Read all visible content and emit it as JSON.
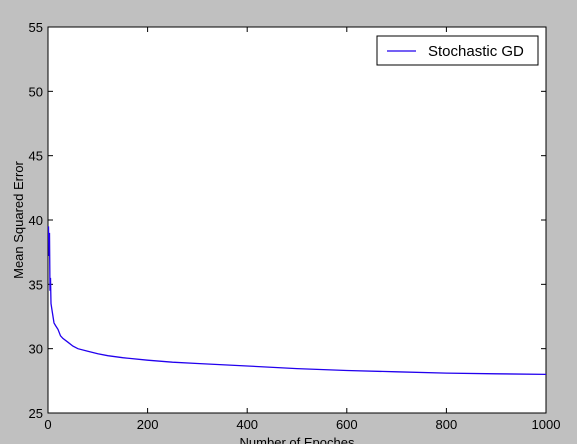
{
  "colors": {
    "background": "#c0c0c0",
    "plot_area": "#ffffff",
    "series": "#2200ee"
  },
  "chart_data": {
    "type": "line",
    "title": "",
    "xlabel": "Number of Epoches",
    "ylabel": "Mean Squared Error",
    "xlim": [
      0,
      1000
    ],
    "ylim": [
      25,
      55
    ],
    "xticks": [
      0,
      200,
      400,
      600,
      800,
      1000
    ],
    "yticks": [
      25,
      30,
      35,
      40,
      45,
      50,
      55
    ],
    "grid": false,
    "legend": "top-right",
    "series": [
      {
        "name": "Stochastic GD",
        "color": "#2200ee",
        "x": [
          1,
          2,
          3,
          4,
          5,
          6,
          8,
          10,
          12,
          15,
          20,
          25,
          30,
          40,
          50,
          60,
          80,
          100,
          120,
          150,
          200,
          250,
          300,
          400,
          500,
          600,
          700,
          800,
          900,
          1000
        ],
        "y": [
          39.5,
          37.2,
          39.0,
          34.5,
          35.5,
          33.5,
          33.0,
          32.5,
          32.0,
          31.8,
          31.5,
          31.0,
          30.8,
          30.5,
          30.2,
          30.0,
          29.8,
          29.6,
          29.45,
          29.3,
          29.1,
          28.95,
          28.85,
          28.65,
          28.45,
          28.3,
          28.2,
          28.1,
          28.05,
          28.0
        ]
      }
    ]
  }
}
